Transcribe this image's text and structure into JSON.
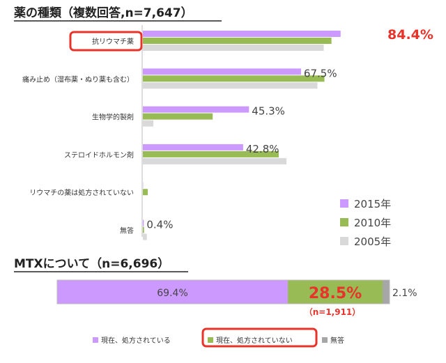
{
  "chart_data": [
    {
      "type": "bar",
      "orientation": "horizontal",
      "title": "薬の種類（複数回答,n=7,647）",
      "categories": [
        "抗リウマチ薬",
        "痛み止め（湿布薬・ぬり薬も含む）",
        "生物学的製剤",
        "ステロイドホルモン剤",
        "リウマチの薬は処方されていない",
        "無答"
      ],
      "highlighted_category": "抗リウマチ薬",
      "series": [
        {
          "name": "2015年",
          "color": "#cc99ff",
          "values": [
            84.4,
            67.5,
            45.3,
            42.8,
            0.1,
            0.4
          ]
        },
        {
          "name": "2010年",
          "color": "#99bb55",
          "values": [
            80.5,
            77.5,
            29.8,
            58.0,
            2.1,
            0.5
          ]
        },
        {
          "name": "2005年",
          "color": "#d9d9d9",
          "values": [
            77.2,
            74.5,
            4.5,
            61.3,
            0.0,
            1.7
          ]
        }
      ],
      "value_labels": [
        "84.4%",
        "67.5%",
        "45.3%",
        "42.8%",
        "",
        "0.4%"
      ],
      "xlim": [
        0,
        105
      ],
      "grid": false,
      "legend": "bottom-right"
    },
    {
      "type": "bar",
      "orientation": "horizontal",
      "stacked": "percent",
      "title": "MTXについて（n=6,696）",
      "segments": [
        {
          "name": "現在、処方されている",
          "value": 69.4,
          "label": "69.4%",
          "color": "#cc99ff"
        },
        {
          "name": "現在、処方されていない",
          "value": 28.5,
          "label": "28.5%",
          "sublabel": "（n=1,911）",
          "color": "#99bb55",
          "highlighted": true
        },
        {
          "name": "無答",
          "value": 2.1,
          "label": "2.1%",
          "color": "#a6a6a6"
        }
      ],
      "xlim": [
        0,
        100
      ],
      "legend": "bottom"
    }
  ]
}
